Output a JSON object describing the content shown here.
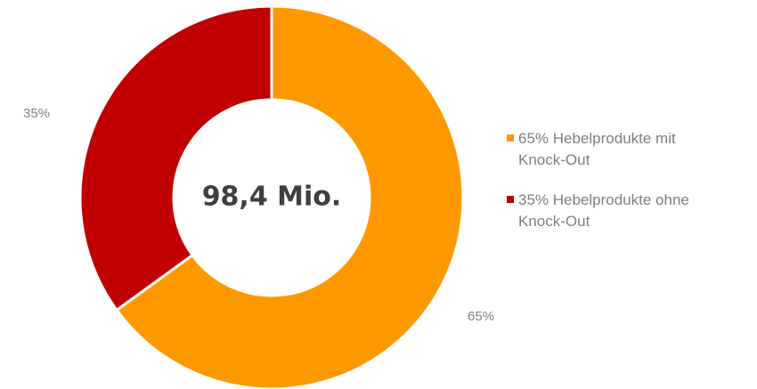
{
  "chart_data": {
    "type": "pie",
    "variant": "donut",
    "center_label": "98,4 Mio.",
    "slices": [
      {
        "label": "Hebelprodukte mit Knock-Out",
        "value": 65,
        "data_label": "65%",
        "legend": "65% Hebelprodukte mit\nKnock-Out",
        "color": "#FF9900"
      },
      {
        "label": "Hebelprodukte ohne Knock-Out",
        "value": 35,
        "data_label": "35%",
        "legend": "35% Hebelprodukte ohne\nKnock-Out",
        "color": "#C00000"
      }
    ],
    "start": "12 o'clock",
    "direction": "clockwise",
    "legend_position": "right"
  }
}
